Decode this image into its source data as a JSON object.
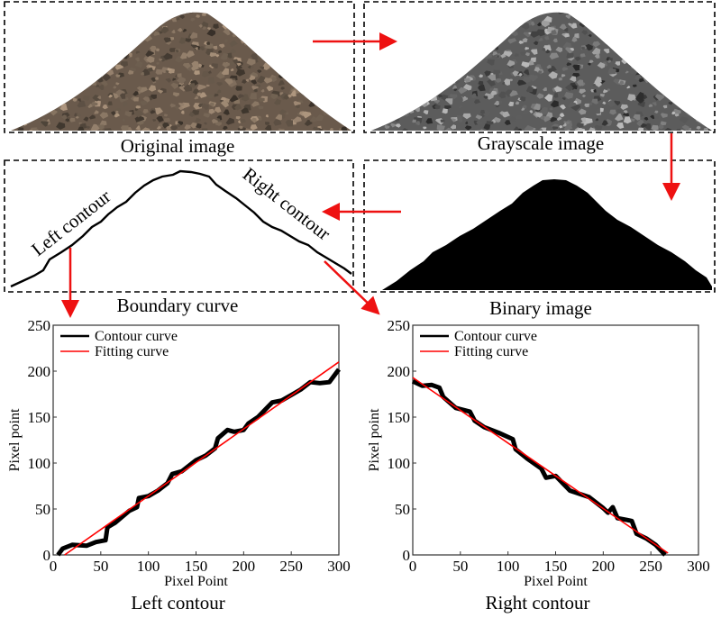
{
  "panels": {
    "original": {
      "caption": "Original image"
    },
    "grayscale": {
      "caption": "Grayscale image"
    },
    "boundary": {
      "caption": "Boundary curve",
      "left_label": "Left contour",
      "right_label": "Right contour"
    },
    "binary": {
      "caption": "Binary image"
    }
  },
  "colors": {
    "arrow": "#ee1111",
    "fit": "#ff0000",
    "contour": "#000000"
  },
  "chart_data": [
    {
      "type": "line",
      "title": "Left contour",
      "xlabel": "Pixel Point",
      "ylabel": "Pixel point",
      "xlim": [
        0,
        300
      ],
      "ylim": [
        0,
        250
      ],
      "xticks": [
        0,
        50,
        100,
        150,
        200,
        250,
        300
      ],
      "yticks": [
        0,
        50,
        100,
        150,
        200,
        250
      ],
      "legend": {
        "position": "top-left",
        "entries": [
          "Contour curve",
          "Fitting curve"
        ]
      },
      "series": [
        {
          "name": "Contour curve",
          "x": [
            5,
            10,
            20,
            35,
            45,
            55,
            57,
            65,
            80,
            88,
            90,
            100,
            110,
            120,
            125,
            135,
            150,
            160,
            170,
            173,
            183,
            190,
            200,
            205,
            215,
            230,
            240,
            250,
            260,
            270,
            280,
            290,
            300
          ],
          "y": [
            0,
            7,
            11,
            10,
            14,
            16,
            30,
            35,
            48,
            52,
            62,
            64,
            70,
            78,
            88,
            91,
            103,
            108,
            116,
            127,
            136,
            134,
            136,
            143,
            150,
            166,
            168,
            174,
            180,
            188,
            187,
            188,
            202
          ]
        },
        {
          "name": "Fitting curve",
          "x": [
            12,
            300
          ],
          "y": [
            0,
            210
          ]
        }
      ]
    },
    {
      "type": "line",
      "title": "Right contour",
      "xlabel": "Pixel Point",
      "ylabel": "Pixel point",
      "xlim": [
        0,
        300
      ],
      "ylim": [
        0,
        250
      ],
      "xticks": [
        0,
        50,
        100,
        150,
        200,
        250,
        300
      ],
      "yticks": [
        0,
        50,
        100,
        150,
        200,
        250
      ],
      "legend": {
        "position": "top-left",
        "entries": [
          "Contour curve",
          "Fitting curve"
        ]
      },
      "series": [
        {
          "name": "Contour curve",
          "x": [
            0,
            10,
            20,
            28,
            32,
            45,
            60,
            65,
            75,
            90,
            105,
            108,
            120,
            135,
            140,
            150,
            165,
            185,
            200,
            205,
            210,
            215,
            225,
            230,
            235,
            245,
            255,
            265
          ],
          "y": [
            189,
            184,
            185,
            182,
            172,
            160,
            156,
            146,
            139,
            133,
            126,
            115,
            105,
            94,
            84,
            86,
            70,
            63,
            51,
            46,
            52,
            40,
            38,
            37,
            23,
            18,
            11,
            0
          ]
        },
        {
          "name": "Fitting curve",
          "x": [
            0,
            268
          ],
          "y": [
            193,
            2
          ]
        }
      ]
    }
  ]
}
